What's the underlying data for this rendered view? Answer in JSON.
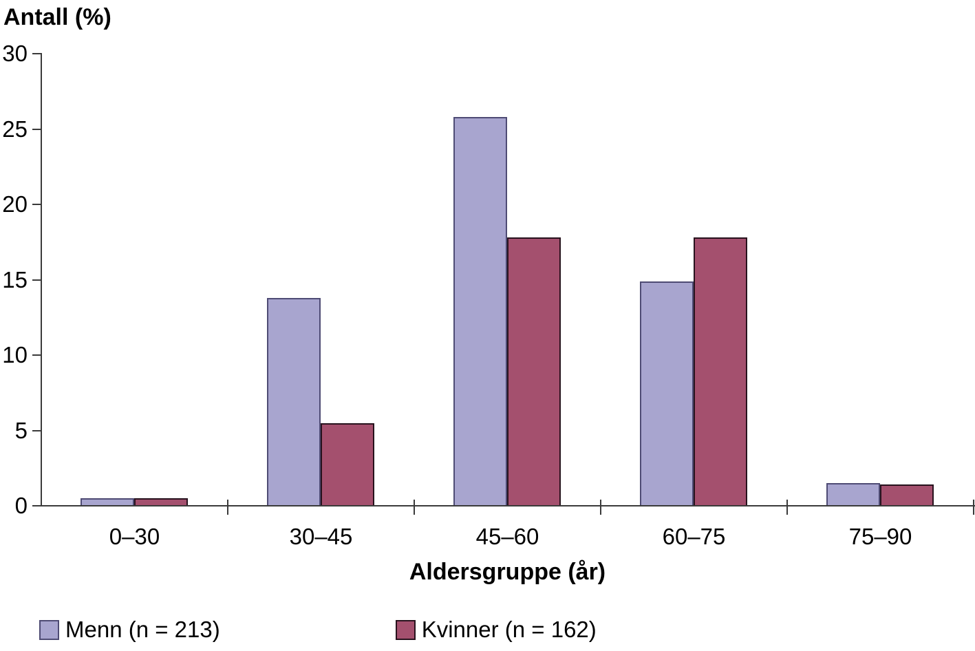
{
  "chart_data": {
    "type": "bar",
    "title": "Antall (%)",
    "xlabel": "Aldersgruppe (år)",
    "ylabel": "Antall (%)",
    "categories": [
      "0–30",
      "30–45",
      "45–60",
      "60–75",
      "75–90"
    ],
    "series": [
      {
        "name": "Menn (n = 213)",
        "values": [
          0.5,
          13.8,
          25.8,
          14.9,
          1.5
        ],
        "fill": "#a8a5cf",
        "border": "#4e4b74"
      },
      {
        "name": "Kvinner (n = 162)",
        "values": [
          0.5,
          5.5,
          17.8,
          17.8,
          1.4
        ],
        "fill": "#a4506e",
        "border": "#27121d"
      }
    ],
    "yticks": [
      0,
      5,
      10,
      15,
      20,
      25,
      30
    ],
    "ylim": [
      0,
      30
    ],
    "grid": false,
    "legend_position": "bottom-left",
    "axis_color": "#3a3a3a",
    "text_color": "#000000"
  }
}
